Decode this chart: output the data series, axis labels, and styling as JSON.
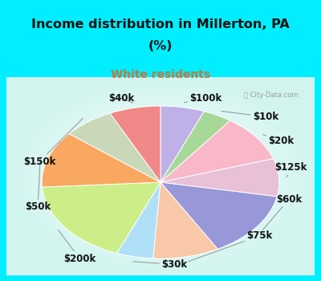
{
  "title_line1": "Income distribution in Millerton, PA",
  "title_line2": "(%)",
  "subtitle": "White residents",
  "title_color": "#111111",
  "subtitle_color": "#c07840",
  "bg_cyan": "#00eeff",
  "labels": [
    "$100k",
    "$10k",
    "$20k",
    "$125k",
    "$60k",
    "$75k",
    "$30k",
    "$200k",
    "$50k",
    "$150k",
    "$40k"
  ],
  "values": [
    6,
    4,
    10,
    8,
    14,
    9,
    5,
    18,
    12,
    7,
    7
  ],
  "colors": [
    "#c0b0e8",
    "#a8d898",
    "#f8b8c8",
    "#e8c0d8",
    "#9898d8",
    "#f8c8a8",
    "#b0e0f8",
    "#ccee88",
    "#f8a860",
    "#c8d8b8",
    "#f08888"
  ],
  "startangle": 90,
  "label_fontsize": 8.5,
  "label_positions": {
    "$100k": [
      0.595,
      0.895,
      "left"
    ],
    "$10k": [
      0.8,
      0.8,
      "left"
    ],
    "$20k": [
      0.85,
      0.68,
      "left"
    ],
    "$125k": [
      0.87,
      0.545,
      "left"
    ],
    "$60k": [
      0.875,
      0.385,
      "left"
    ],
    "$75k": [
      0.78,
      0.2,
      "left"
    ],
    "$30k": [
      0.545,
      0.055,
      "center"
    ],
    "$200k": [
      0.185,
      0.085,
      "left"
    ],
    "$50k": [
      0.06,
      0.345,
      "left"
    ],
    "$150k": [
      0.055,
      0.575,
      "left"
    ],
    "$40k": [
      0.33,
      0.895,
      "left"
    ]
  }
}
